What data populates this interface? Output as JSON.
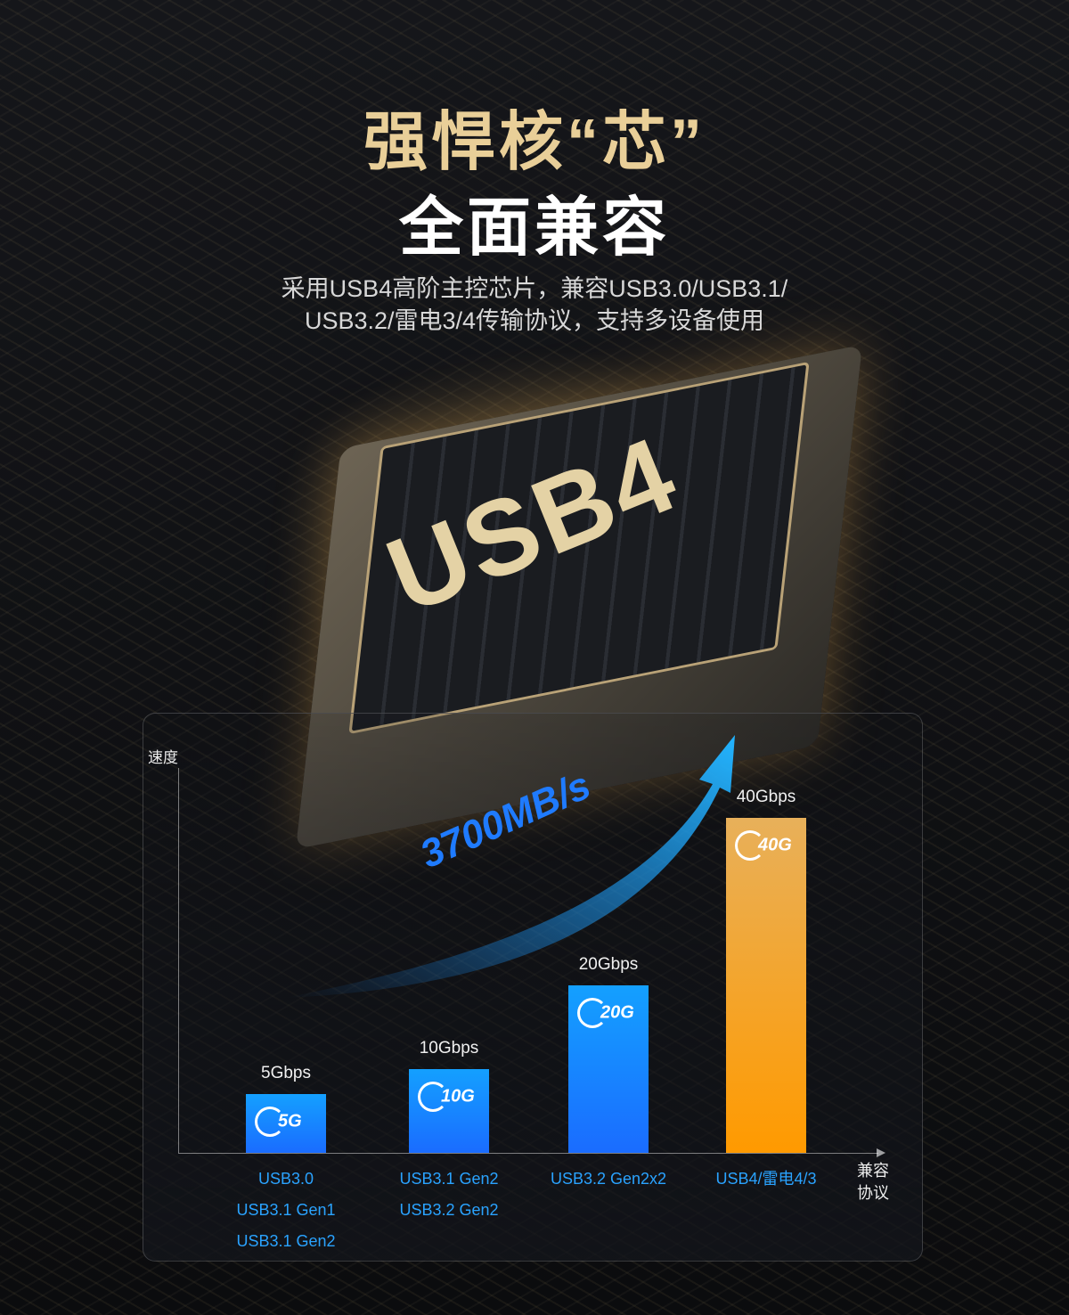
{
  "header": {
    "title_line1": "强悍核“芯”",
    "title_line2": "全面兼容",
    "subtitle_line1": "采用USB4高阶主控芯片，兼容USB3.0/USB3.1/",
    "subtitle_line2": "USB3.2/雷电3/4传输协议，支持多设备使用"
  },
  "chip": {
    "label": "USB4"
  },
  "chart_data": {
    "type": "bar",
    "ylabel": "速度",
    "xlabel": "兼容协议",
    "categories": [
      [
        "USB3.0",
        "USB3.1 Gen1",
        "USB3.1 Gen2"
      ],
      [
        "USB3.1 Gen2",
        "USB3.2 Gen2"
      ],
      [
        "USB3.2 Gen2x2"
      ],
      [
        "USB4/雷电4/3"
      ]
    ],
    "values": [
      5,
      10,
      20,
      40
    ],
    "unit": "Gbps",
    "value_labels": [
      "5Gbps",
      "10Gbps",
      "20Gbps",
      "40Gbps"
    ],
    "badges": [
      "5Gbps",
      "10Gbps",
      "20Gbps",
      "40Gbps"
    ],
    "annotation": "3700MB/s",
    "colors": [
      "#1a6cff",
      "#1a6cff",
      "#1a6cff",
      "#f59a10"
    ],
    "ylim": [
      0,
      40
    ],
    "grid": false
  }
}
